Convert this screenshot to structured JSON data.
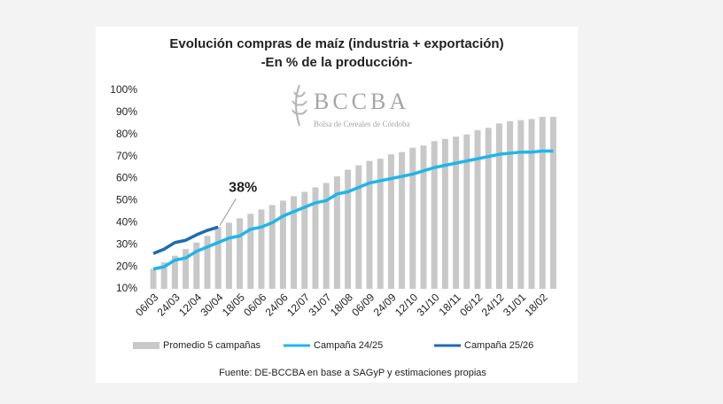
{
  "chart_data": {
    "type": "bar",
    "title": "Evolución compras de maíz (industria + exportación)",
    "subtitle": "-En % de la producción-",
    "logo": {
      "name": "BCCBA",
      "tagline": "Bolsa de Cereales de Córdoba"
    },
    "categories": [
      "06/03",
      null,
      "24/03",
      null,
      "12/04",
      null,
      "30/04",
      null,
      "18/05",
      null,
      "06/06",
      null,
      "24/06",
      null,
      "12/07",
      null,
      "31/07",
      null,
      "18/08",
      null,
      "06/09",
      null,
      "24/09",
      null,
      "12/10",
      null,
      "31/10",
      null,
      "18/11",
      null,
      "06/12",
      null,
      "24/12",
      null,
      "31/01",
      null,
      "18/02",
      null
    ],
    "series": [
      {
        "name": "Promedio 5 campañas",
        "color": "#c8c8c8",
        "kind": "bar",
        "values": [
          19,
          22,
          25,
          28,
          31,
          34,
          38,
          40,
          42,
          44,
          46,
          48,
          50,
          52,
          54,
          56,
          58,
          61,
          64,
          66,
          68,
          69,
          71,
          72,
          74,
          75,
          77,
          78,
          79,
          80,
          82,
          83,
          85,
          86,
          86.5,
          87,
          88,
          88
        ]
      },
      {
        "name": "Campaña 24/25",
        "color": "#1fb5ea",
        "kind": "line",
        "values": [
          19,
          20,
          23,
          24,
          27,
          29,
          31,
          33,
          34,
          37,
          38,
          40,
          43,
          45,
          47,
          49,
          50,
          53,
          54,
          56,
          58,
          59,
          60,
          61,
          62,
          63.5,
          65,
          66,
          67,
          68,
          69,
          70,
          71,
          71.5,
          72,
          72,
          72.5,
          72.5
        ]
      },
      {
        "name": "Campaña 25/26",
        "color": "#1f6bb0",
        "kind": "line",
        "values": [
          26,
          28,
          31,
          32,
          34.5,
          36.5,
          38,
          null,
          null,
          null,
          null,
          null,
          null,
          null,
          null,
          null,
          null,
          null,
          null,
          null,
          null,
          null,
          null,
          null,
          null,
          null,
          null,
          null,
          null,
          null,
          null,
          null,
          null,
          null,
          null,
          null,
          null,
          null
        ]
      }
    ],
    "annotation": {
      "label": "38%",
      "value": 38,
      "index": 6
    },
    "ylim": [
      10,
      100
    ],
    "yticks": [
      {
        "value": 10,
        "label": "10%"
      },
      {
        "value": 20,
        "label": "20%"
      },
      {
        "value": 30,
        "label": "30%"
      },
      {
        "value": 40,
        "label": "40%"
      },
      {
        "value": 50,
        "label": "50%"
      },
      {
        "value": 60,
        "label": "60%"
      },
      {
        "value": 70,
        "label": "70%"
      },
      {
        "value": 80,
        "label": "80%"
      },
      {
        "value": 90,
        "label": "90%"
      },
      {
        "value": 100,
        "label": "100%"
      }
    ],
    "source": "Fuente: DE-BCCBA en base a SAGyP y estimaciones propias"
  }
}
